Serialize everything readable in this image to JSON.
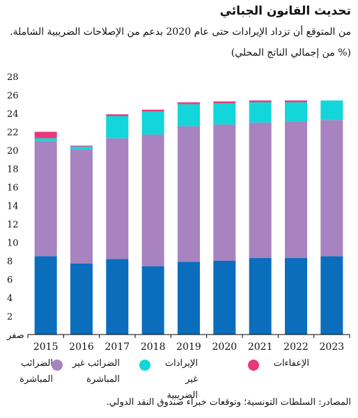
{
  "title": "تحديث القانون الجبائي",
  "subtitle": "من المتوقع أن تزداد الإيرادات حتى عام 2020 بدعم من الإصلاحات الضريبية الشاملة.",
  "units": "(% من إجمالي الناتج المحلي)",
  "source": "المصادر: السلطات التونسية؛ وتوقعات خبراء صندوق النقد الدولي.",
  "chart_data": {
    "type": "bar",
    "stacked": true,
    "title": "تحديث القانون الجبائي",
    "ylabel": "(% من إجمالي الناتج المحلي)",
    "categories": [
      "2015",
      "2016",
      "2017",
      "2018",
      "2019",
      "2020",
      "2021",
      "2022",
      "2023"
    ],
    "ylim": [
      0,
      28
    ],
    "yticks": [
      0,
      2,
      4,
      6,
      8,
      10,
      12,
      14,
      16,
      18,
      20,
      22,
      24,
      26,
      28
    ],
    "ytick_labels": [
      "صفر",
      "2",
      "4",
      "6",
      "8",
      "10",
      "12",
      "14",
      "16",
      "18",
      "20",
      "22",
      "24",
      "26",
      "28"
    ],
    "grid": false,
    "legend_position": "bottom",
    "series": [
      {
        "name": "الضرائب المباشرة",
        "color": "#0a6ebd",
        "values": [
          8.5,
          7.7,
          8.2,
          7.4,
          7.9,
          8.0,
          8.3,
          8.3,
          8.5
        ]
      },
      {
        "name": "الضرائب غير المباشرة",
        "color": "#a783bf",
        "values": [
          12.5,
          12.4,
          13.1,
          14.3,
          14.7,
          14.8,
          14.7,
          14.8,
          14.8
        ]
      },
      {
        "name": "الإيرادات غير الضريبية",
        "color": "#12d6d9",
        "values": [
          0.3,
          0.3,
          2.4,
          2.5,
          2.4,
          2.3,
          2.2,
          2.1,
          2.1
        ]
      },
      {
        "name": "الإعفاءات",
        "color": "#e8397a",
        "values": [
          0.7,
          0.1,
          0.2,
          0.2,
          0.2,
          0.2,
          0.2,
          0.2,
          0.0
        ]
      }
    ]
  }
}
